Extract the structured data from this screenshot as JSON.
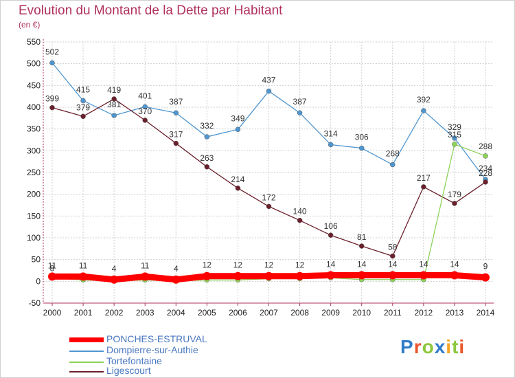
{
  "header": {
    "title": "Evolution du Montant de la Dette par Habitant",
    "subtitle": "(en €)"
  },
  "logo": {
    "text": "Proxiti",
    "letter_colors": [
      "#2f7dc8",
      "#e8562a",
      "#8dc63f",
      "#2f7dc8",
      "#f5a623",
      "#8dc63f",
      "#e8562a"
    ]
  },
  "colors": {
    "grid": "#cfcfcf",
    "axis": "#b0305e",
    "tick_text": "#222222",
    "label_text": "#333333"
  },
  "chart_data": {
    "type": "line",
    "x": [
      "2000",
      "2001",
      "2002",
      "2003",
      "2004",
      "2005",
      "2006",
      "2007",
      "2008",
      "2009",
      "2010",
      "2011",
      "2012",
      "2013",
      "2014"
    ],
    "ylim": [
      -50,
      550
    ],
    "yticks": [
      -50,
      0,
      50,
      100,
      150,
      200,
      250,
      300,
      350,
      400,
      450,
      500,
      550
    ],
    "grid": true,
    "legend_position": "bottom-left",
    "series": [
      {
        "name": "PONCHES-ESTRUVAL",
        "color": "#ff0000",
        "values": [
          11,
          11,
          4,
          11,
          4,
          12,
          12,
          12,
          12,
          14,
          14,
          14,
          14,
          14,
          9
        ],
        "labels": [
          true,
          true,
          true,
          true,
          true,
          true,
          true,
          true,
          true,
          true,
          true,
          true,
          true,
          true,
          true
        ],
        "thick": true
      },
      {
        "name": "Dompierre-sur-Authie",
        "color": "#4f96d0",
        "values": [
          502,
          415,
          381,
          401,
          387,
          332,
          349,
          437,
          387,
          314,
          306,
          268,
          392,
          329,
          234
        ],
        "labels": [
          true,
          true,
          true,
          true,
          true,
          true,
          true,
          true,
          true,
          true,
          true,
          true,
          true,
          true,
          true
        ],
        "thick": false
      },
      {
        "name": "Tortefontaine",
        "color": "#8cd35a",
        "values": [
          8,
          3,
          1,
          3,
          1,
          3,
          3,
          6,
          6,
          8,
          4,
          4,
          4,
          315,
          288
        ],
        "labels": [
          true,
          false,
          false,
          false,
          false,
          false,
          false,
          false,
          false,
          false,
          false,
          false,
          false,
          true,
          true
        ],
        "thick": false
      },
      {
        "name": "Ligescourt",
        "color": "#6b1f2b",
        "values": [
          399,
          379,
          419,
          370,
          317,
          263,
          214,
          172,
          140,
          106,
          81,
          58,
          217,
          179,
          228
        ],
        "labels": [
          true,
          true,
          true,
          true,
          true,
          true,
          true,
          true,
          true,
          true,
          true,
          true,
          true,
          true,
          true
        ],
        "thick": false
      }
    ]
  }
}
